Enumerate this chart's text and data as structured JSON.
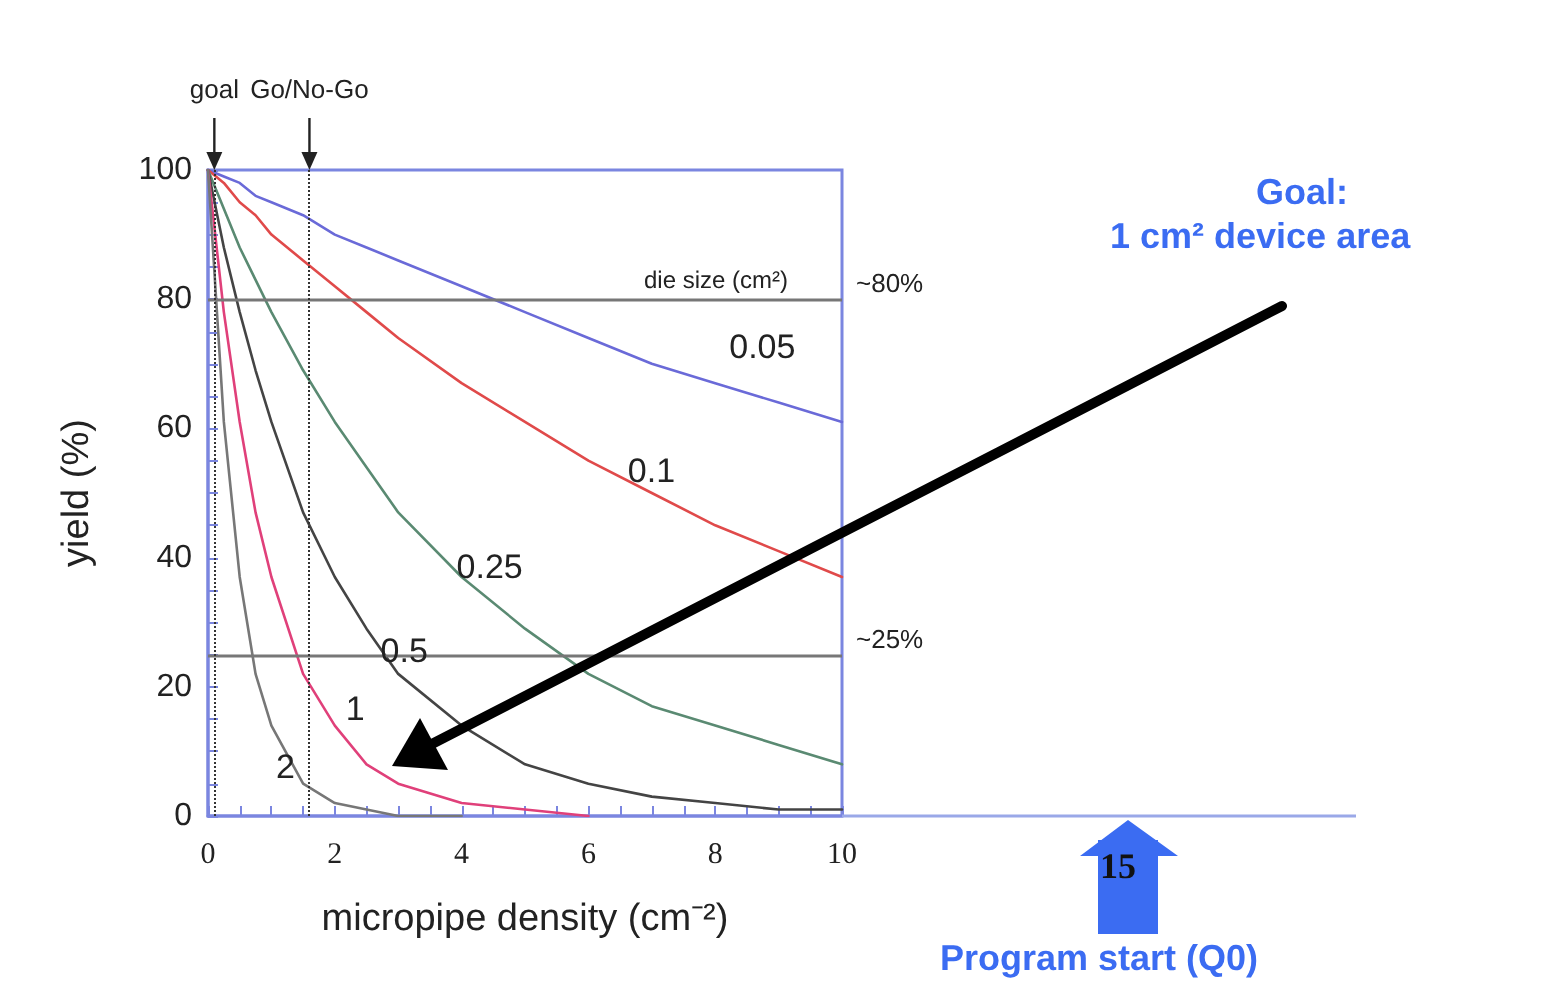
{
  "chart_data": {
    "type": "line",
    "xlabel": "micropipe density (cm⁻²)",
    "ylabel": "yield (%)",
    "legend_title": "die size (cm²)",
    "x": [
      0,
      0.25,
      0.5,
      0.75,
      1,
      1.5,
      2,
      2.5,
      3,
      4,
      5,
      6,
      7,
      8,
      9,
      10
    ],
    "xlim": [
      0,
      10
    ],
    "xticks": [
      0,
      2,
      4,
      6,
      8,
      10
    ],
    "ylim": [
      0,
      100
    ],
    "yticks": [
      0,
      20,
      40,
      60,
      80,
      100
    ],
    "grid": false,
    "legend": false,
    "marker": "none",
    "line_style": "solid",
    "series": [
      {
        "name": "0.05",
        "color": "#6a6ad8",
        "values": [
          100,
          99,
          98,
          96,
          95,
          93,
          90,
          88,
          86,
          82,
          78,
          74,
          70,
          67,
          64,
          61
        ]
      },
      {
        "name": "0.1",
        "color": "#e04a4a",
        "values": [
          100,
          98,
          95,
          93,
          90,
          86,
          82,
          78,
          74,
          67,
          61,
          55,
          50,
          45,
          41,
          37
        ]
      },
      {
        "name": "0.25",
        "color": "#5a8a72",
        "values": [
          100,
          94,
          88,
          83,
          78,
          69,
          61,
          54,
          47,
          37,
          29,
          22,
          17,
          14,
          11,
          8
        ]
      },
      {
        "name": "0.5",
        "color": "#444444",
        "values": [
          100,
          88,
          78,
          69,
          61,
          47,
          37,
          29,
          22,
          14,
          8,
          5,
          3,
          2,
          1,
          1
        ]
      },
      {
        "name": "1",
        "color": "#e0407a",
        "values": [
          100,
          78,
          61,
          47,
          37,
          22,
          14,
          8,
          5,
          2,
          1,
          0,
          null,
          null,
          null,
          null
        ]
      },
      {
        "name": "2",
        "color": "#777777",
        "values": [
          100,
          61,
          37,
          22,
          14,
          5,
          2,
          1,
          0,
          0,
          null,
          null,
          null,
          null,
          null,
          null
        ]
      }
    ],
    "ref_lines": [
      {
        "axis": "y",
        "value": 80,
        "label": "~80%",
        "color": "#777777",
        "line_style": "solid"
      },
      {
        "axis": "y",
        "value": 25,
        "label": "~25%",
        "color": "#777777",
        "line_style": "solid"
      },
      {
        "axis": "x",
        "value": 0.1,
        "label": "goal",
        "color": "#333333",
        "line_style": "dotted"
      },
      {
        "axis": "x",
        "value": 1.6,
        "label": "Go/No-Go",
        "color": "#333333",
        "line_style": "dotted"
      }
    ],
    "annotations": [
      "Goal:",
      "1 cm² device area",
      "15",
      "Program start (Q0)"
    ]
  }
}
